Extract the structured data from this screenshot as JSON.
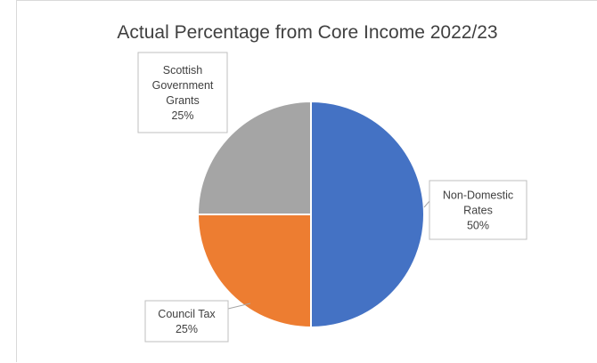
{
  "chart_data": {
    "type": "pie",
    "title": "Actual Percentage from Core Income 2022/23",
    "slices": [
      {
        "name": "Non-Domestic Rates",
        "label_lines": [
          "Non-Domestic",
          "Rates"
        ],
        "value": 50,
        "value_label": "50%",
        "color": "#4472C4"
      },
      {
        "name": "Council Tax",
        "label_lines": [
          "Council Tax"
        ],
        "value": 25,
        "value_label": "25%",
        "color": "#ED7D31"
      },
      {
        "name": "Scottish Government Grants",
        "label_lines": [
          "Scottish",
          "Government",
          "Grants"
        ],
        "value": 25,
        "value_label": "25%",
        "color": "#A5A5A5"
      }
    ]
  }
}
